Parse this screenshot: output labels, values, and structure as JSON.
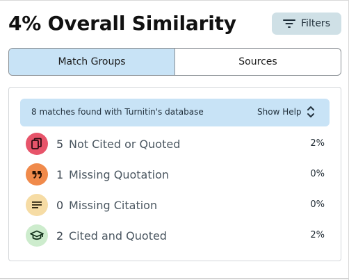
{
  "header": {
    "title": "4% Overall Similarity",
    "filters_label": "Filters"
  },
  "tabs": [
    {
      "label": "Match Groups",
      "active": true
    },
    {
      "label": "Sources",
      "active": false
    }
  ],
  "banner": {
    "text": "8 matches found with Turnitin's database",
    "help_label": "Show Help"
  },
  "groups": [
    {
      "count": "5",
      "label": "Not Cited or Quoted",
      "percent": "2%",
      "icon": "copy-icon",
      "color": "#e7546a"
    },
    {
      "count": "1",
      "label": "Missing Quotation",
      "percent": "0%",
      "icon": "quote-icon",
      "color": "#f08a4b"
    },
    {
      "count": "0",
      "label": "Missing Citation",
      "percent": "0%",
      "icon": "lines-icon",
      "color": "#f6dca5"
    },
    {
      "count": "2",
      "label": "Cited and Quoted",
      "percent": "2%",
      "icon": "graduation-cap-icon",
      "color": "#cdeccd"
    }
  ],
  "colors": {
    "accent_blue": "#c8e3f6",
    "filters_bg": "#cfe0e6"
  }
}
